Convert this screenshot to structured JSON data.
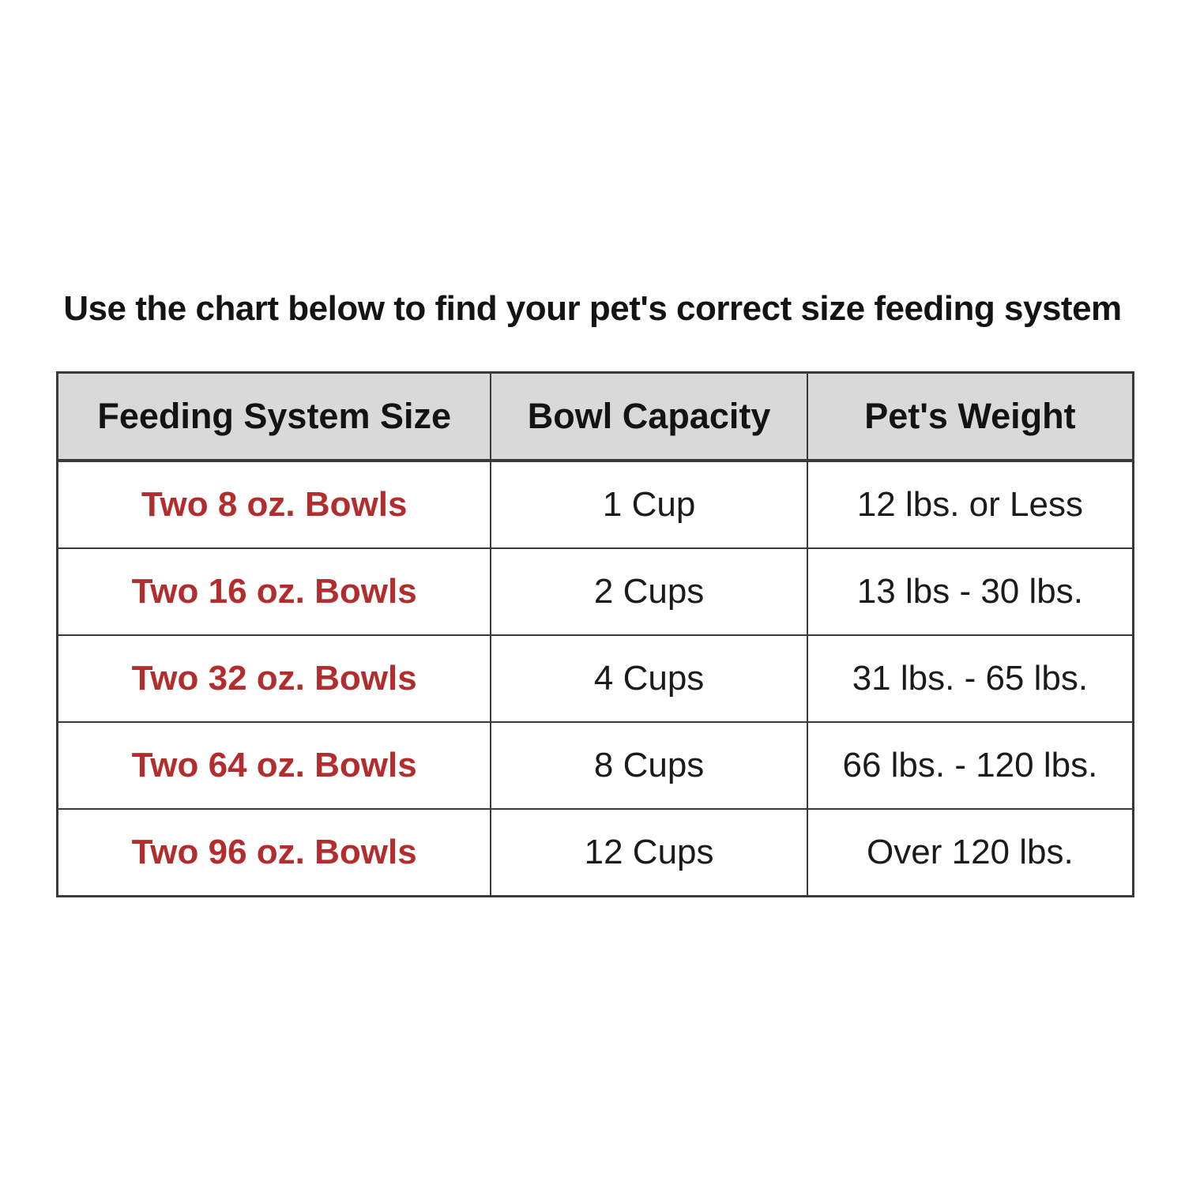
{
  "title": "Use the chart below to find your pet's correct size feeding system",
  "colors": {
    "accent_red": "#b22e2e",
    "header_background": "#d9d9d9",
    "border": "#3a3a3a",
    "text": "#1b1b1b",
    "page_background": "#ffffff"
  },
  "chart_data": {
    "type": "table",
    "title": "Use the chart below to find your pet's correct size feeding system",
    "columns": [
      "Feeding System Size",
      "Bowl Capacity",
      "Pet's Weight"
    ],
    "rows": [
      [
        "Two 8 oz. Bowls",
        "1 Cup",
        "12 lbs. or Less"
      ],
      [
        "Two 16 oz. Bowls",
        "2 Cups",
        "13 lbs - 30 lbs."
      ],
      [
        "Two 32 oz. Bowls",
        "4 Cups",
        "31 lbs. - 65 lbs."
      ],
      [
        "Two 64 oz. Bowls",
        "8 Cups",
        "66 lbs. - 120 lbs."
      ],
      [
        "Two 96 oz. Bowls",
        "12 Cups",
        "Over 120 lbs."
      ]
    ],
    "layout_hints": {
      "first_column_style": "bold red text",
      "header_style": "bold black text on light gray background",
      "grid": true
    }
  }
}
